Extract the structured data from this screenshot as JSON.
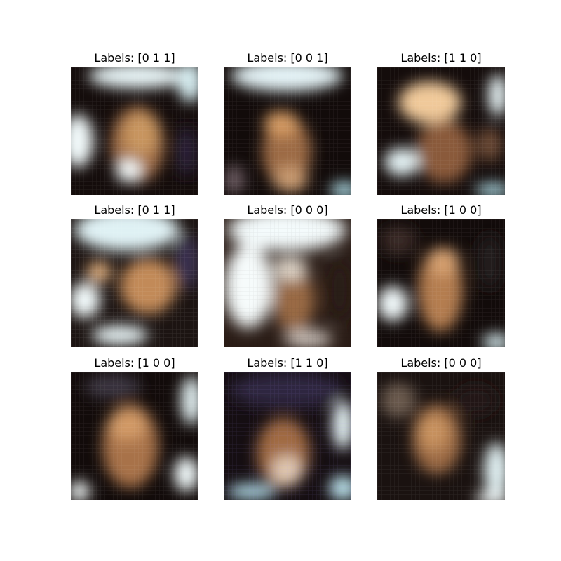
{
  "grid": {
    "rows": 3,
    "cols": 3,
    "cells": [
      {
        "label": "Labels: [0 1 1]",
        "tone": "warm-dark",
        "highlights": [
          "left",
          "top",
          "bottom"
        ]
      },
      {
        "label": "Labels: [0 0 1]",
        "tone": "warm-dark",
        "highlights": [
          "top",
          "bottom"
        ]
      },
      {
        "label": "Labels: [1 1 0]",
        "tone": "warm-dark",
        "highlights": [
          "top-left",
          "right",
          "bottom-left"
        ]
      },
      {
        "label": "Labels: [0 1 1]",
        "tone": "cool-light",
        "highlights": [
          "top",
          "left",
          "bottom"
        ]
      },
      {
        "label": "Labels: [0 0 0]",
        "tone": "bright",
        "highlights": [
          "left",
          "top",
          "bottom"
        ]
      },
      {
        "label": "Labels: [1 0 0]",
        "tone": "warm-dark",
        "highlights": [
          "left",
          "bottom"
        ]
      },
      {
        "label": "Labels: [1 0 0]",
        "tone": "warm-dark",
        "highlights": [
          "right",
          "bottom-left"
        ]
      },
      {
        "label": "Labels: [1 1 0]",
        "tone": "purple-dark",
        "highlights": [
          "right",
          "bottom"
        ]
      },
      {
        "label": "Labels: [0 0 0]",
        "tone": "warm-dark",
        "highlights": [
          "right",
          "bottom-right"
        ]
      }
    ]
  },
  "colors": {
    "background": "#ffffff",
    "dark": "#120b0a",
    "skin": "#c08a5a",
    "highlight": "#eef8fa",
    "cyan": "#8fc7d6",
    "purple": "#3a3050"
  }
}
